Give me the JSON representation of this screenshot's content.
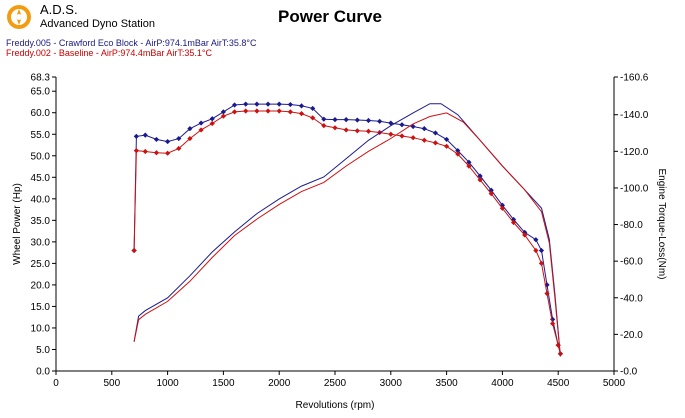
{
  "header": {
    "brand_name": "A.D.S.",
    "brand_subtitle": "Advanced Dyno Station",
    "title": "Power Curve",
    "runs": [
      "Freddy.005 - Crawford Eco Block  - AirP:974.1mBar AirT:35.8°C",
      "Freddy.002 - Baseline  - AirP:974.4mBar AirT:35.1°C"
    ]
  },
  "colors": {
    "series_blue": "#1a1a90",
    "series_red": "#cc1111",
    "logo": "#f39c12"
  },
  "chart_data": {
    "type": "line",
    "title": "Power Curve",
    "xlabel": "Revolutions (rpm)",
    "ylabel": "Wheel Power (Hp)",
    "y2label": "Engine Torque-Loss(Nm)",
    "xlim": [
      0,
      5000
    ],
    "ylim": [
      0,
      68.3
    ],
    "y2lim": [
      0,
      160.6
    ],
    "x_ticks": [
      "0",
      "500",
      "1000",
      "1500",
      "2000",
      "2500",
      "3000",
      "3500",
      "4000",
      "4500",
      "5000"
    ],
    "y_ticks": [
      "0.0",
      "5.0",
      "10.0",
      "15.0",
      "20.0",
      "25.0",
      "30.0",
      "35.0",
      "40.0",
      "45.0",
      "50.0",
      "55.0",
      "60.0",
      "65.0",
      "68.3"
    ],
    "y2_ticks": [
      "-0.0",
      "-20.0",
      "-40.0",
      "-60.0",
      "-80.0",
      "-100.0",
      "-120.0",
      "-140.0",
      "-160.6"
    ],
    "grid": false,
    "series": [
      {
        "kind": "power",
        "color": "#1a1a90",
        "x": [
          700,
          720,
          800,
          900,
          1000,
          1100,
          1200,
          1300,
          1400,
          1500,
          1600,
          1700,
          1800,
          1900,
          2000,
          2100,
          2200,
          2300,
          2400,
          2500,
          2600,
          2700,
          2800,
          2900,
          3000,
          3100,
          3200,
          3300,
          3400,
          3500,
          3600,
          3700,
          3800,
          3900,
          4000,
          4100,
          4200,
          4300,
          4350,
          4400,
          4450,
          4500,
          4520
        ],
        "values": [
          28,
          54.5,
          54.8,
          53.8,
          53.3,
          54,
          56.3,
          57.6,
          58.6,
          60.2,
          61.8,
          62,
          62,
          62,
          62,
          61.9,
          61.6,
          61,
          58.5,
          58.4,
          58.4,
          58.3,
          58.2,
          58,
          57.6,
          57.2,
          56.8,
          56.3,
          55.3,
          53.8,
          51.2,
          48.5,
          45.3,
          42,
          38.5,
          35.2,
          32.2,
          30.5,
          28,
          20,
          12,
          6,
          4
        ]
      },
      {
        "kind": "power",
        "color": "#cc1111",
        "x": [
          700,
          720,
          800,
          900,
          1000,
          1100,
          1200,
          1300,
          1400,
          1500,
          1600,
          1700,
          1800,
          1900,
          2000,
          2100,
          2200,
          2300,
          2400,
          2500,
          2600,
          2700,
          2800,
          2900,
          3000,
          3100,
          3200,
          3300,
          3400,
          3500,
          3600,
          3700,
          3800,
          3900,
          4000,
          4100,
          4200,
          4300,
          4350,
          4400,
          4450,
          4500,
          4520
        ],
        "values": [
          28,
          51.2,
          51,
          50.7,
          50.6,
          51.7,
          54,
          56,
          57.5,
          59.2,
          60.2,
          60.4,
          60.4,
          60.4,
          60.4,
          60.2,
          59.8,
          58.8,
          57,
          56.5,
          56,
          55.8,
          55.7,
          55.4,
          55,
          54.6,
          54.2,
          53.6,
          53,
          52.2,
          50.4,
          47.6,
          44.4,
          41.2,
          37.8,
          34.5,
          31.6,
          28,
          25,
          18,
          11,
          6,
          4
        ]
      },
      {
        "kind": "torque",
        "color": "#1a1a90",
        "x": [
          700,
          740,
          800,
          1000,
          1200,
          1400,
          1600,
          1800,
          2000,
          2200,
          2400,
          2600,
          2800,
          3000,
          3200,
          3350,
          3450,
          3600,
          3800,
          4000,
          4200,
          4350,
          4420,
          4470,
          4520
        ],
        "values": [
          16,
          30,
          33,
          40,
          52,
          65,
          76,
          86,
          94,
          101,
          106,
          116,
          126,
          134,
          141,
          146,
          146,
          140,
          126,
          112,
          99,
          89,
          72,
          42,
          8
        ]
      },
      {
        "kind": "torque",
        "color": "#cc1111",
        "x": [
          700,
          740,
          800,
          1000,
          1200,
          1400,
          1600,
          1800,
          2000,
          2200,
          2400,
          2600,
          2800,
          3000,
          3200,
          3350,
          3500,
          3650,
          3800,
          4000,
          4200,
          4350,
          4420,
          4470,
          4520
        ],
        "values": [
          16,
          28,
          31,
          38,
          49,
          62,
          74,
          83,
          91,
          98,
          103,
          112,
          120,
          127,
          135,
          139,
          141,
          136,
          126,
          112,
          99,
          87,
          70,
          40,
          8
        ]
      }
    ]
  }
}
